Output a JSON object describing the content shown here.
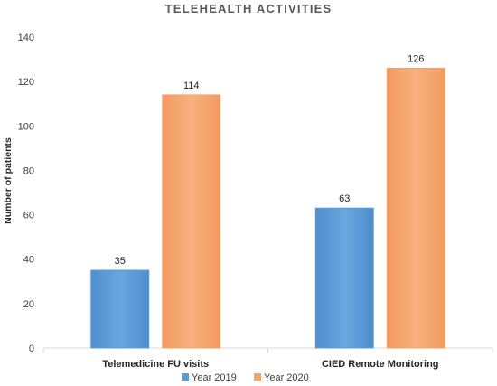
{
  "chart_data": {
    "type": "bar",
    "title": "TELEHEALTH ACTIVITIES",
    "xlabel": "",
    "ylabel": "Number of patients",
    "ylim": [
      0,
      140
    ],
    "yticks": [
      0,
      20,
      40,
      60,
      80,
      100,
      120,
      140
    ],
    "grid": false,
    "legend_position": "bottom",
    "categories": [
      "Telemedicine FU visits",
      "CIED Remote Monitoring"
    ],
    "series": [
      {
        "name": "Year 2019",
        "values": [
          35,
          63
        ],
        "color": "#5b9bd5"
      },
      {
        "name": "Year 2020",
        "values": [
          114,
          126
        ],
        "color": "#f4a46b"
      }
    ]
  }
}
